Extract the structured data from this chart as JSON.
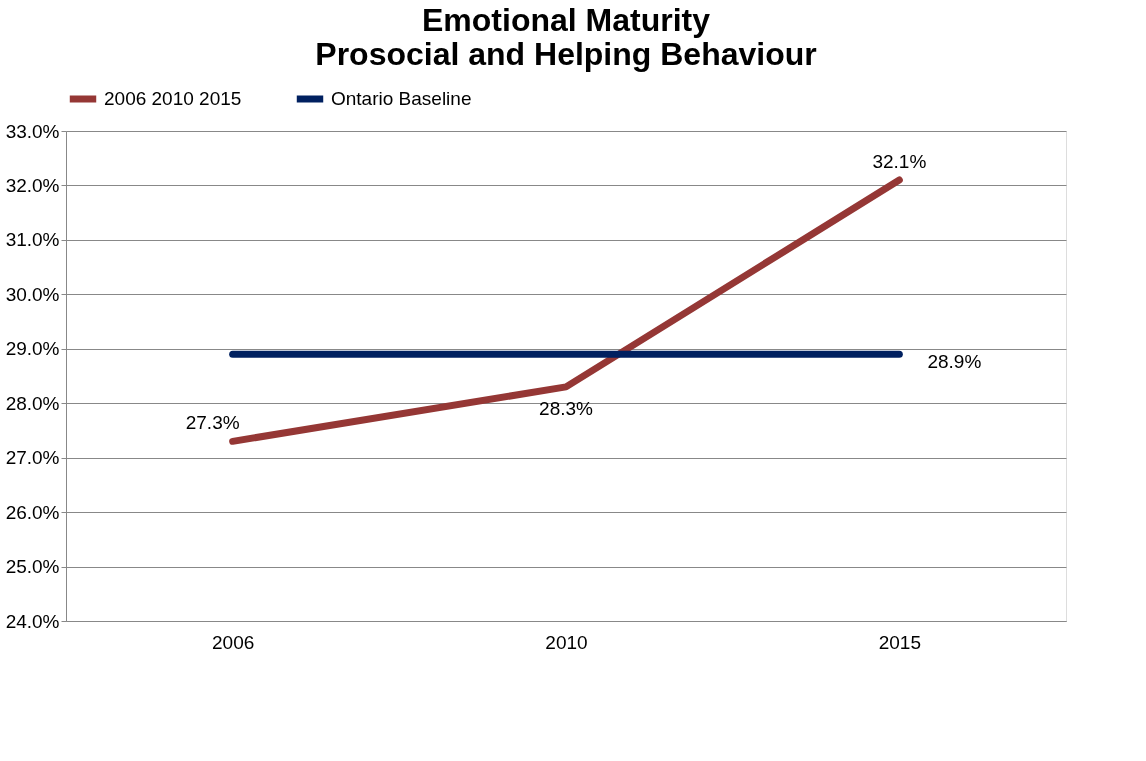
{
  "chart_data": {
    "type": "line",
    "title": [
      "Emotional Maturity",
      "Prosocial and Helping Behaviour"
    ],
    "categories": [
      "2006",
      "2010",
      "2015"
    ],
    "series": [
      {
        "name": "2006 2010 2015",
        "color": "#953735",
        "values": [
          27.3,
          28.3,
          32.1
        ],
        "value_labels": [
          "27.3%",
          "28.3%",
          "32.1%"
        ]
      },
      {
        "name": "Ontario Baseline",
        "color": "#002060",
        "values": [
          28.9,
          28.9,
          28.9
        ],
        "value_labels": [
          null,
          null,
          "28.9%"
        ]
      }
    ],
    "ylim": [
      24,
      33
    ],
    "yticks": [
      {
        "value": 24,
        "label": "24.0%"
      },
      {
        "value": 25,
        "label": "25.0%"
      },
      {
        "value": 26,
        "label": "26.0%"
      },
      {
        "value": 27,
        "label": "27.0%"
      },
      {
        "value": 28,
        "label": "28.0%"
      },
      {
        "value": 29,
        "label": "29.0%"
      },
      {
        "value": 30,
        "label": "30.0%"
      },
      {
        "value": 31,
        "label": "31.0%"
      },
      {
        "value": 32,
        "label": "32.0%"
      },
      {
        "value": 33,
        "label": "33.0%"
      }
    ],
    "grid": "y",
    "legend": "top",
    "marker": "none",
    "line_style": "solid"
  }
}
